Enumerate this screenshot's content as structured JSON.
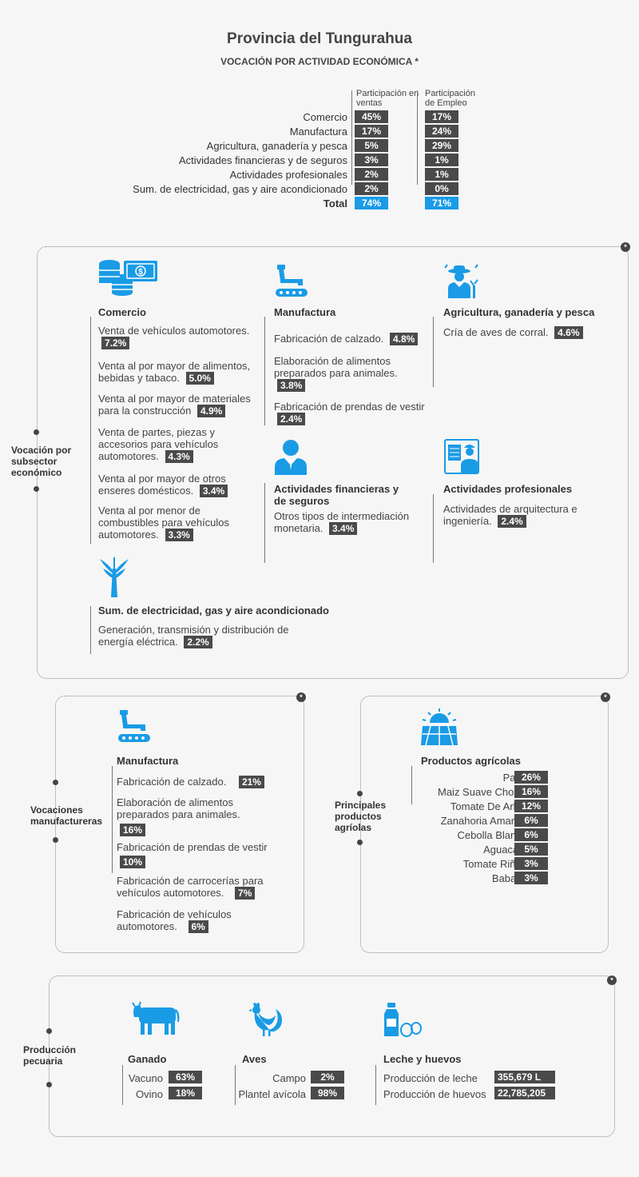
{
  "header": {
    "title": "Provincia del Tungurahua",
    "subtitle": "VOCACIÓN POR ACTIVIDAD ECONÓMICA *"
  },
  "summary_table": {
    "col_ventas": "Participación en ventas",
    "col_empleo": "Participación de Empleo",
    "rows": [
      {
        "label": "Comercio",
        "ventas": "45%",
        "empleo": "17%"
      },
      {
        "label": "Manufactura",
        "ventas": "17%",
        "empleo": "24%"
      },
      {
        "label": "Agricultura, ganadería y pesca",
        "ventas": "5%",
        "empleo": "29%"
      },
      {
        "label": "Actividades financieras y de seguros",
        "ventas": "3%",
        "empleo": "1%"
      },
      {
        "label": "Actividades profesionales",
        "ventas": "2%",
        "empleo": "1%"
      },
      {
        "label": "Sum. de electricidad, gas y aire acondicionado",
        "ventas": "2%",
        "empleo": "0%"
      }
    ],
    "total": {
      "label": "Total",
      "ventas": "74%",
      "empleo": "71%"
    }
  },
  "subsector": {
    "side_label": "Vocación por subsector económico",
    "star": "*",
    "comercio": {
      "title": "Comercio",
      "items": [
        {
          "text": "Venta de vehículos automotores.",
          "value": "7.2%"
        },
        {
          "text": "Venta al por mayor de alimentos, bebidas y tabaco.",
          "value": "5.0%"
        },
        {
          "text": "Venta al por mayor de materiales para la construcción",
          "value": "4.9%"
        },
        {
          "text": "Venta de partes, piezas y accesorios para vehículos automotores.",
          "value": "4.3%"
        },
        {
          "text": "Venta al por mayor de otros enseres domésticos.",
          "value": "3.4%"
        },
        {
          "text": "Venta al por menor de combustibles para vehículos automotores.",
          "value": "3.3%"
        }
      ]
    },
    "manufactura": {
      "title": "Manufactura",
      "items": [
        {
          "text": "Fabricación de calzado.",
          "value": "4.8%"
        },
        {
          "text": "Elaboración de alimentos preparados para animales.",
          "value": "3.8%"
        },
        {
          "text": "Fabricación de prendas de vestir",
          "value": "2.4%"
        }
      ]
    },
    "agricultura": {
      "title": "Agricultura, ganadería y pesca",
      "items": [
        {
          "text": "Cría de aves de corral.",
          "value": "4.6%"
        }
      ]
    },
    "financieras": {
      "title": "Actividades financieras y de seguros",
      "items": [
        {
          "text": "Otros tipos de intermediación monetaria.",
          "value": "3.4%"
        }
      ]
    },
    "profesionales": {
      "title": "Actividades profesionales",
      "items": [
        {
          "text": "Actividades de arquitectura e ingeniería.",
          "value": "2.4%"
        }
      ]
    },
    "electricidad": {
      "title": "Sum. de electricidad, gas y aire acondicionado",
      "items": [
        {
          "text": "Generación, transmisión y distribución de energía eléctrica.",
          "value": "2.2%"
        }
      ]
    }
  },
  "manufactureras": {
    "side_label": "Vocaciones manufactureras",
    "title": "Manufactura",
    "star": "*",
    "items": [
      {
        "text": "Fabricación de calzado.",
        "value": "21%"
      },
      {
        "text": "Elaboración de alimentos preparados para animales.",
        "value": "16%"
      },
      {
        "text": "Fabricación de prendas de vestir",
        "value": "10%"
      },
      {
        "text": "Fabricación de carrocerías para vehículos automotores.",
        "value": "7%"
      },
      {
        "text": "Fabricación de vehículos automotores.",
        "value": "6%"
      }
    ]
  },
  "agricolas": {
    "side_label": "Principales productos agríolas",
    "title": "Productos agrícolas",
    "star": "*",
    "items": [
      {
        "label": "Papa",
        "value": "26%"
      },
      {
        "label": "Maiz Suave Choclo",
        "value": "16%"
      },
      {
        "label": "Tomate De Arbol",
        "value": "12%"
      },
      {
        "label": "Zanahoria Amarilla",
        "value": "6%"
      },
      {
        "label": "Cebolla Blanca",
        "value": "6%"
      },
      {
        "label": "Aguacate",
        "value": "5%"
      },
      {
        "label": "Tomate Riñon",
        "value": "3%"
      },
      {
        "label": "Babaco",
        "value": "3%"
      }
    ]
  },
  "pecuaria": {
    "side_label": "Producción pecuaria",
    "star": "*",
    "ganado": {
      "title": "Ganado",
      "rows": [
        {
          "label": "Vacuno",
          "value": "63%"
        },
        {
          "label": "Ovino",
          "value": "18%"
        }
      ]
    },
    "aves": {
      "title": "Aves",
      "rows": [
        {
          "label": "Campo",
          "value": "2%"
        },
        {
          "label": "Plantel avícola",
          "value": "98%"
        }
      ]
    },
    "leche": {
      "title": "Leche y huevos",
      "rows": [
        {
          "label": "Producción de leche",
          "value": "355,679 L"
        },
        {
          "label": "Producción de huevos",
          "value": "22,785,205"
        }
      ]
    }
  },
  "icons": {
    "comercio": "money-coins-icon",
    "manufactura": "robot-arm-icon",
    "agricultura": "farmer-icon",
    "financieras": "businessman-icon",
    "profesionales": "engineer-icon",
    "electricidad": "power-tower-icon",
    "agricolas": "sun-field-icon",
    "ganado": "cow-icon",
    "aves": "rooster-icon",
    "leche": "milk-eggs-icon",
    "accent_color": "#1a9be6"
  }
}
